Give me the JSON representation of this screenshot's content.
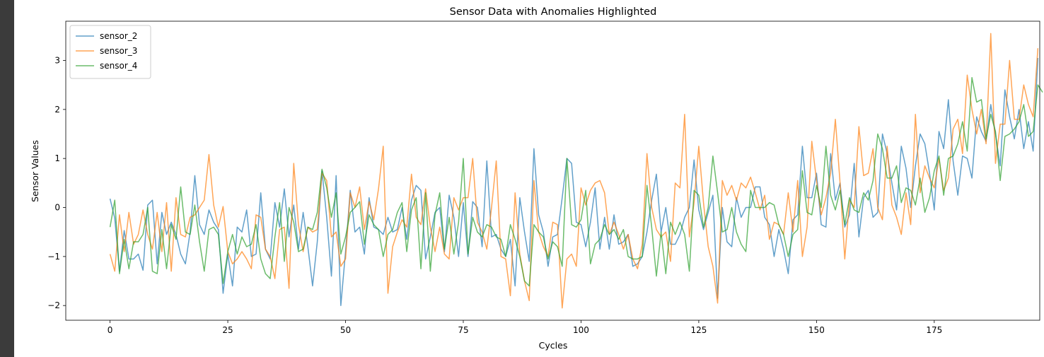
{
  "chart_data": {
    "type": "line",
    "title": "Sensor Data with Anomalies Highlighted",
    "xlabel": "Cycles",
    "ylabel": "Sensor Values",
    "xlim": [
      -9.4,
      197.4
    ],
    "ylim": [
      -2.3,
      3.8
    ],
    "xticks": [
      0,
      25,
      50,
      75,
      100,
      125,
      150,
      175
    ],
    "xtick_labels": [
      "0",
      "25",
      "50",
      "75",
      "100",
      "125",
      "150",
      "175"
    ],
    "yticks": [
      -2,
      -1,
      0,
      1,
      2,
      3
    ],
    "ytick_labels": [
      "−2",
      "−1",
      "0",
      "1",
      "2",
      "3"
    ],
    "grid": false,
    "legend_position": "upper-left",
    "series": [
      {
        "name": "sensor_2",
        "color": "#1f77b4",
        "values": [
          0.18,
          -0.22,
          -1.3,
          -0.47,
          -1.05,
          -1.05,
          -0.95,
          -1.28,
          0.05,
          0.15,
          -1.15,
          -0.1,
          -0.55,
          -0.3,
          -0.55,
          -0.95,
          -1.15,
          -0.5,
          0.65,
          -0.35,
          -0.55,
          -0.05,
          -0.3,
          -0.45,
          -1.75,
          -0.95,
          -1.6,
          -0.4,
          -0.5,
          -0.05,
          -1.0,
          -0.95,
          0.3,
          -0.85,
          -1.05,
          0.1,
          -0.4,
          0.38,
          -0.6,
          0.05,
          -0.85,
          -0.1,
          -0.8,
          -1.6,
          -0.7,
          0.75,
          -0.2,
          -1.4,
          0.65,
          -2.0,
          -0.9,
          0.35,
          -0.5,
          -0.4,
          -0.95,
          0.2,
          -0.4,
          -0.45,
          -0.55,
          -0.2,
          -0.5,
          -0.45,
          0.0,
          -0.65,
          0.15,
          0.45,
          0.35,
          -1.05,
          -0.6,
          -0.1,
          0.0,
          -0.9,
          0.25,
          -0.2,
          -1.0,
          0.1,
          -1.0,
          0.12,
          0.0,
          -0.8,
          0.95,
          -0.6,
          -0.55,
          -0.85,
          -1.0,
          -0.65,
          -1.6,
          0.2,
          -0.5,
          -1.1,
          1.2,
          -0.15,
          -0.5,
          -1.2,
          -0.6,
          -0.55,
          0.2,
          1.0,
          0.9,
          -0.3,
          -0.35,
          -0.8,
          -0.3,
          0.4,
          -0.85,
          -0.2,
          -0.85,
          -0.15,
          -0.75,
          -0.7,
          -0.55,
          -1.2,
          -1.15,
          -1.0,
          -0.5,
          0.15,
          0.68,
          -0.5,
          0.0,
          -0.75,
          -0.75,
          -0.55,
          -0.2,
          0.0,
          0.97,
          -0.05,
          -0.45,
          -0.1,
          0.25,
          -1.85,
          0.0,
          -0.7,
          -0.8,
          0.2,
          -0.2,
          0.0,
          0.0,
          0.42,
          0.42,
          -0.2,
          -0.35,
          -1.0,
          -0.45,
          -0.85,
          -1.35,
          -0.25,
          -0.15,
          1.25,
          0.2,
          0.2,
          0.7,
          -0.35,
          -0.4,
          1.1,
          0.15,
          0.5,
          -0.4,
          -0.15,
          0.9,
          -0.6,
          0.2,
          0.35,
          -0.2,
          -0.1,
          1.5,
          1.1,
          0.5,
          -0.05,
          1.25,
          0.8,
          0.0,
          0.85,
          1.5,
          1.3,
          0.7,
          -0.05,
          1.55,
          1.2,
          2.2,
          0.95,
          0.25,
          1.05,
          1.0,
          0.6,
          1.85,
          1.55,
          1.35,
          2.1,
          1.5,
          0.85,
          2.4,
          1.85,
          1.4,
          2.0,
          1.2,
          1.75,
          1.15,
          3.05
        ]
      },
      {
        "name": "sensor_3",
        "color": "#ff7f0e",
        "values": [
          -0.95,
          -1.3,
          -0.15,
          -0.9,
          -0.1,
          -0.75,
          -0.55,
          -0.05,
          -0.55,
          -0.85,
          -0.1,
          -0.9,
          0.1,
          -1.3,
          0.2,
          -0.55,
          -0.6,
          -0.2,
          -0.15,
          0.0,
          0.15,
          1.08,
          0.05,
          -0.4,
          0.02,
          -0.9,
          -1.15,
          -1.05,
          -0.9,
          -1.05,
          -1.25,
          -0.15,
          -0.2,
          -0.85,
          -1.0,
          -1.45,
          -0.45,
          -0.4,
          -1.65,
          0.9,
          -0.35,
          -0.9,
          -0.4,
          -0.5,
          -0.45,
          0.7,
          0.55,
          -0.6,
          -0.5,
          -1.2,
          -1.05,
          0.3,
          0.0,
          0.42,
          -0.45,
          0.12,
          -0.25,
          0.38,
          1.25,
          -1.75,
          -0.8,
          -0.5,
          -0.25,
          -0.4,
          0.68,
          -0.2,
          -0.35,
          0.38,
          -0.4,
          -0.9,
          -0.4,
          -0.95,
          -1.05,
          0.2,
          -0.05,
          0.2,
          0.2,
          1.0,
          -0.3,
          -0.5,
          -0.85,
          0.0,
          0.95,
          -1.0,
          -1.05,
          -1.8,
          0.3,
          -0.95,
          -1.5,
          -1.9,
          0.55,
          -0.5,
          -0.8,
          -1.0,
          -0.3,
          -0.35,
          -2.05,
          -1.05,
          -0.95,
          -1.2,
          0.4,
          0.05,
          0.35,
          0.5,
          0.55,
          0.3,
          -0.55,
          -0.3,
          -0.55,
          -0.85,
          -0.55,
          -1.05,
          -1.25,
          -0.75,
          1.1,
          0.0,
          -0.45,
          -0.6,
          -0.5,
          -1.1,
          0.5,
          0.4,
          1.9,
          -0.6,
          0.1,
          1.25,
          0.1,
          -0.8,
          -1.2,
          -1.95,
          0.55,
          0.25,
          0.45,
          0.15,
          0.5,
          0.4,
          0.62,
          0.3,
          -0.05,
          0.25,
          -0.65,
          -0.3,
          -0.35,
          -0.55,
          0.3,
          -0.5,
          0.55,
          -1.0,
          -0.4,
          1.35,
          0.55,
          -0.15,
          0.2,
          0.7,
          1.8,
          0.5,
          -1.05,
          0.15,
          0.0,
          1.65,
          0.65,
          0.7,
          1.2,
          0.0,
          -0.25,
          1.25,
          0.05,
          -0.2,
          -0.55,
          0.3,
          -0.35,
          1.9,
          0.3,
          0.85,
          0.6,
          0.4,
          1.0,
          0.35,
          0.6,
          1.6,
          1.8,
          1.1,
          2.7,
          2.0,
          1.5,
          2.0,
          1.3,
          3.55,
          0.9,
          1.7,
          1.7,
          3.0,
          1.8,
          1.8,
          2.5,
          2.1,
          1.85,
          3.25
        ]
      },
      {
        "name": "sensor_4",
        "color": "#2ca02c",
        "values": [
          -0.4,
          0.15,
          -1.35,
          -0.65,
          -1.25,
          -0.7,
          -0.7,
          -0.55,
          0.0,
          -1.3,
          -1.35,
          -0.45,
          -1.25,
          -0.35,
          -0.65,
          0.42,
          -0.5,
          -0.55,
          0.05,
          -0.7,
          -1.3,
          -0.45,
          -0.4,
          -0.55,
          -1.55,
          -0.9,
          -0.55,
          -0.95,
          -0.6,
          -0.8,
          -0.75,
          -0.35,
          -1.05,
          -1.35,
          -1.45,
          -0.6,
          0.1,
          -1.1,
          0.0,
          -0.3,
          -0.9,
          -0.85,
          -0.4,
          -0.45,
          -0.1,
          0.78,
          0.4,
          -0.2,
          0.3,
          -0.95,
          -0.6,
          -0.1,
          0.0,
          0.12,
          -0.75,
          -0.15,
          -0.35,
          -0.45,
          -1.0,
          -0.55,
          -0.45,
          -0.1,
          0.1,
          -0.9,
          -0.05,
          0.2,
          -1.25,
          0.3,
          -1.3,
          -0.15,
          0.3,
          -0.85,
          -0.2,
          -0.95,
          -0.3,
          1.0,
          -0.95,
          -0.2,
          -0.5,
          -0.6,
          -0.35,
          -0.4,
          -0.6,
          -0.65,
          -1.0,
          -0.35,
          -0.65,
          -1.0,
          -1.5,
          -1.6,
          -0.35,
          -0.5,
          -0.6,
          -1.05,
          -0.7,
          -0.8,
          -1.2,
          1.0,
          -0.35,
          -0.4,
          -0.25,
          0.35,
          -1.15,
          -0.75,
          -0.65,
          -0.35,
          -0.55,
          -0.45,
          -0.65,
          -0.45,
          -1.0,
          -1.05,
          -1.05,
          -1.0,
          0.45,
          -0.4,
          -1.4,
          -0.5,
          -1.35,
          -0.3,
          -0.55,
          -0.3,
          -0.55,
          -1.3,
          0.35,
          0.25,
          -0.4,
          0.0,
          1.05,
          0.3,
          -0.5,
          -0.45,
          0.0,
          -0.5,
          -0.75,
          -0.9,
          0.35,
          0.0,
          0.0,
          0.0,
          0.1,
          0.05,
          -0.35,
          -0.55,
          -1.0,
          -0.55,
          -0.45,
          0.75,
          -0.1,
          -0.15,
          0.45,
          0.0,
          1.25,
          0.25,
          -0.05,
          0.35,
          -0.35,
          0.2,
          -0.05,
          -0.1,
          0.3,
          0.15,
          0.55,
          1.5,
          1.2,
          0.6,
          0.6,
          0.85,
          0.1,
          0.4,
          0.35,
          0.05,
          0.6,
          -0.1,
          0.2,
          0.75,
          1.05,
          0.25,
          1.0,
          1.05,
          1.3,
          1.75,
          1.15,
          2.65,
          2.15,
          2.2,
          1.4,
          1.9,
          1.55,
          0.55,
          1.45,
          1.5,
          1.6,
          1.75,
          2.1,
          1.45,
          1.55,
          2.5,
          2.35
        ]
      }
    ]
  }
}
